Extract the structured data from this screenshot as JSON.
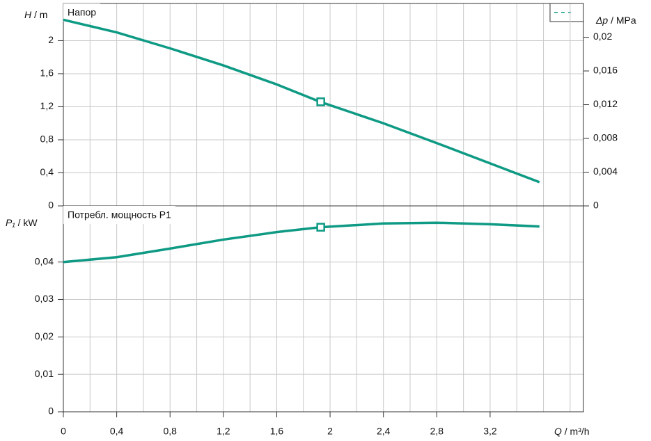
{
  "chart_data": [
    {
      "type": "line",
      "title": "Напор",
      "ylabel_symbol": "H",
      "ylabel_unit": "/ m",
      "y2label_symbol": "Δp",
      "y2label_unit": "/ MPa",
      "x": [
        0,
        0.4,
        0.8,
        1.2,
        1.6,
        1.93,
        2.4,
        2.8,
        3.2,
        3.57
      ],
      "series": [
        {
          "color": "#0e9a84",
          "values": [
            2.253,
            2.1,
            1.907,
            1.7,
            1.47,
            1.257,
            1.0,
            0.76,
            0.515,
            0.287
          ]
        }
      ],
      "operating_point": {
        "x": 1.93,
        "value": 1.26
      },
      "xlim": [
        0,
        3.9
      ],
      "ylim": [
        0,
        2.45
      ],
      "y2lim": [
        0,
        0.024
      ],
      "xticks": [
        0,
        {
          "value": 0.4,
          "label": "0,4"
        },
        {
          "value": 0.8,
          "label": "0,8"
        },
        {
          "value": 1.2,
          "label": "1,2"
        },
        {
          "value": 1.6,
          "label": "1,6"
        },
        2,
        {
          "value": 2.4,
          "label": "2,4"
        },
        {
          "value": 2.8,
          "label": "2,8"
        },
        {
          "value": 3.2,
          "label": "3,2"
        }
      ],
      "xgrid": [
        0.2,
        0.4,
        0.6,
        0.8,
        1.0,
        1.2,
        1.4,
        1.6,
        1.8,
        2.0,
        2.2,
        2.4,
        2.6,
        2.8,
        3.0,
        3.2,
        3.4,
        3.6,
        3.8
      ],
      "yticks": [
        0,
        {
          "value": 0.4,
          "label": "0,4"
        },
        {
          "value": 0.8,
          "label": "0,8"
        },
        {
          "value": 1.2,
          "label": "1,2"
        },
        {
          "value": 1.6,
          "label": "1,6"
        },
        2
      ],
      "y2ticks": [
        0,
        {
          "value": 0.004,
          "label": "0,004"
        },
        {
          "value": 0.008,
          "label": "0,008"
        },
        {
          "value": 0.012,
          "label": "0,012"
        },
        {
          "value": 0.016,
          "label": "0,016"
        },
        {
          "value": 0.02,
          "label": "0,02"
        }
      ],
      "grid": true
    },
    {
      "type": "line",
      "title": "Потребл. мощность P1",
      "ylabel_symbol": "P₁",
      "ylabel_unit": "/ kW",
      "xlabel_symbol": "Q",
      "xlabel_unit": "/ m³/h",
      "x": [
        0,
        0.4,
        0.8,
        1.2,
        1.6,
        1.93,
        2.4,
        2.8,
        3.2,
        3.57
      ],
      "series": [
        {
          "color": "#0e9a84",
          "values": [
            0.04,
            0.0413,
            0.0436,
            0.046,
            0.048,
            0.0493,
            0.0503,
            0.0505,
            0.0501,
            0.0495
          ]
        }
      ],
      "operating_point": {
        "x": 1.93,
        "value": 0.0493
      },
      "xlim": [
        0,
        3.9
      ],
      "ylim": [
        0,
        0.055
      ],
      "xticks": [
        0,
        {
          "value": 0.4,
          "label": "0,4"
        },
        {
          "value": 0.8,
          "label": "0,8"
        },
        {
          "value": 1.2,
          "label": "1,2"
        },
        {
          "value": 1.6,
          "label": "1,6"
        },
        2,
        {
          "value": 2.4,
          "label": "2,4"
        },
        {
          "value": 2.8,
          "label": "2,8"
        },
        {
          "value": 3.2,
          "label": "3,2"
        }
      ],
      "xgrid": [
        0.2,
        0.4,
        0.6,
        0.8,
        1.0,
        1.2,
        1.4,
        1.6,
        1.8,
        2.0,
        2.2,
        2.4,
        2.6,
        2.8,
        3.0,
        3.2,
        3.4,
        3.6,
        3.8
      ],
      "yticks": [
        0,
        {
          "value": 0.01,
          "label": "0,01"
        },
        {
          "value": 0.02,
          "label": "0,02"
        },
        {
          "value": 0.03,
          "label": "0,03"
        },
        {
          "value": 0.04,
          "label": "0,04"
        }
      ],
      "grid": true
    }
  ]
}
